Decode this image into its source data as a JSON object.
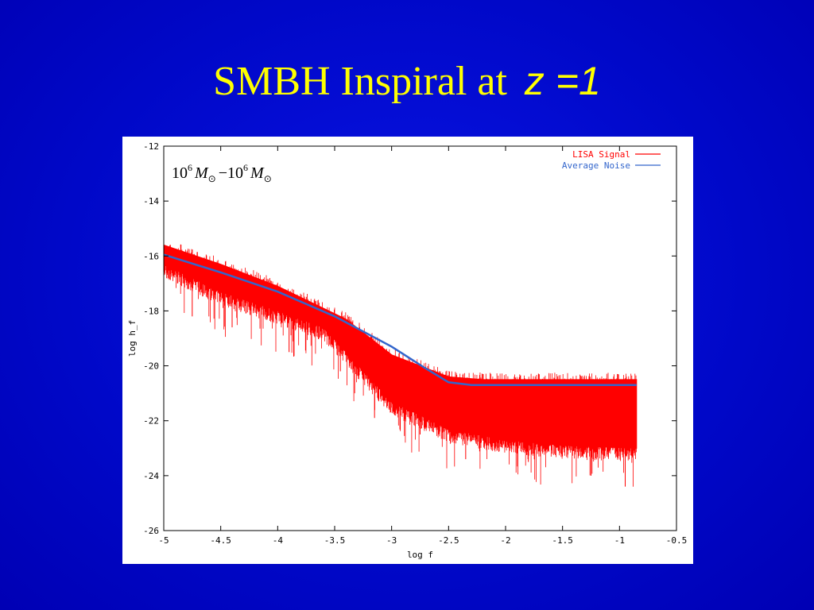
{
  "slide": {
    "title_main": "SMBH Inspiral at",
    "title_z": "z =1"
  },
  "chart_data": {
    "type": "line",
    "xlabel": "log f",
    "ylabel": "log h_f",
    "xlim": [
      -5,
      -0.5
    ],
    "ylim": [
      -26,
      -12
    ],
    "x_ticks": [
      -5,
      -4.5,
      -4,
      -3.5,
      -3,
      -2.5,
      -2,
      -1.5,
      -1,
      -0.5
    ],
    "y_ticks": [
      -12,
      -14,
      -16,
      -18,
      -20,
      -22,
      -24,
      -26
    ],
    "x_tick_labels": [
      "-5",
      "-4.5",
      "-4",
      "-3.5",
      "-3",
      "-2.5",
      "-2",
      "-1.5",
      "-1",
      "-0.5"
    ],
    "y_tick_labels": [
      "-12",
      "-14",
      "-16",
      "-18",
      "-20",
      "-22",
      "-24",
      "-26"
    ],
    "annotation": {
      "mantissa_1": "10",
      "exponent_1": "6",
      "symbol_1": "M",
      "operator": "−",
      "mantissa_2": "10",
      "exponent_2": "6",
      "symbol_2": "M",
      "sun_glyph": "⊙"
    },
    "legend_position": "top-right",
    "series": [
      {
        "name": "LISA Signal",
        "color": "#ff0000",
        "x_range": [
          -5,
          -0.85
        ],
        "upper_envelope": [
          [
            -5,
            -15.6
          ],
          [
            -4.5,
            -16.3
          ],
          [
            -4,
            -17.1
          ],
          [
            -3.6,
            -17.9
          ],
          [
            -3.4,
            -18.3
          ],
          [
            -3,
            -19.6
          ],
          [
            -2.5,
            -20.4
          ],
          [
            -2.2,
            -20.5
          ],
          [
            -0.85,
            -20.5
          ]
        ],
        "lower_envelope": [
          [
            -5,
            -16.3
          ],
          [
            -4.5,
            -17.3
          ],
          [
            -4,
            -18.0
          ],
          [
            -3.6,
            -18.6
          ],
          [
            -3.4,
            -19.5
          ],
          [
            -3,
            -21.3
          ],
          [
            -2.5,
            -22.3
          ],
          [
            -2,
            -22.7
          ],
          [
            -1.5,
            -22.9
          ],
          [
            -0.85,
            -23.0
          ]
        ],
        "min_spikes": [
          [
            -4.75,
            -18.2
          ],
          [
            -4.4,
            -18.6
          ],
          [
            -3.9,
            -19.5
          ],
          [
            -3.45,
            -20.2
          ],
          [
            -3.15,
            -21.9
          ],
          [
            -2.75,
            -22.5
          ],
          [
            -2.35,
            -23.4
          ],
          [
            -1.8,
            -23.5
          ],
          [
            -1.25,
            -24.0
          ],
          [
            -0.95,
            -24.4
          ]
        ]
      },
      {
        "name": "Average Noise",
        "color": "#3366cc",
        "points": [
          [
            -5,
            -15.95
          ],
          [
            -4.5,
            -16.6
          ],
          [
            -4,
            -17.3
          ],
          [
            -3.5,
            -18.2
          ],
          [
            -3,
            -19.3
          ],
          [
            -2.7,
            -20.1
          ],
          [
            -2.5,
            -20.6
          ],
          [
            -2.3,
            -20.7
          ],
          [
            -0.85,
            -20.7
          ]
        ]
      }
    ]
  }
}
